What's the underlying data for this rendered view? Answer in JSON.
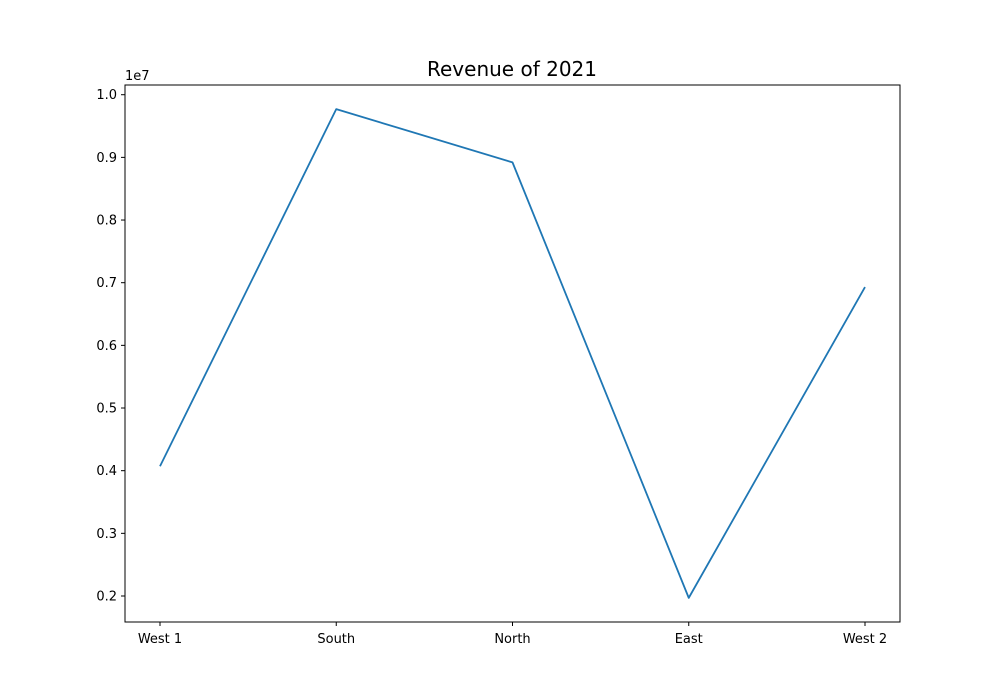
{
  "chart_data": {
    "type": "line",
    "title": "Revenue of 2021",
    "xlabel": "",
    "ylabel": "",
    "y_offset_label": "1e7",
    "categories": [
      "West 1",
      "South",
      "North",
      "East",
      "West 2"
    ],
    "series": [
      {
        "values": [
          4070000,
          9770000,
          8920000,
          1970000,
          6930000
        ],
        "color": "#1f77b4"
      }
    ],
    "y_ticks": [
      2000000,
      3000000,
      4000000,
      5000000,
      6000000,
      7000000,
      8000000,
      9000000,
      10000000
    ],
    "y_tick_labels": [
      "0.2",
      "0.3",
      "0.4",
      "0.5",
      "0.6",
      "0.7",
      "0.8",
      "0.9",
      "1.0"
    ],
    "ylim": [
      1585000,
      10155000
    ],
    "grid": false,
    "legend": "none"
  }
}
